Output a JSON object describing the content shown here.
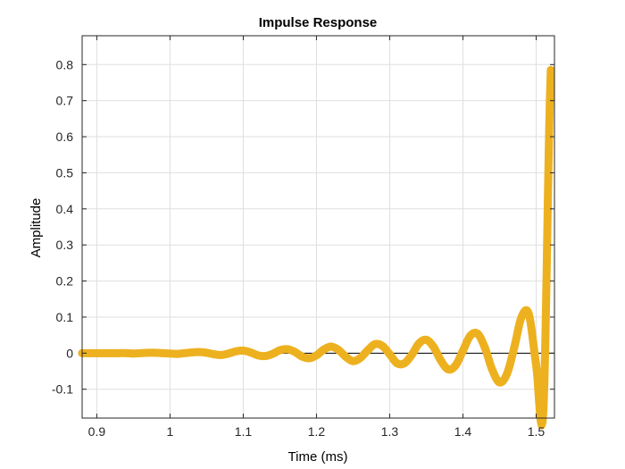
{
  "chart_data": {
    "type": "line",
    "title": "Impulse Response",
    "xlabel": "Time (ms)",
    "ylabel": "Amplitude",
    "xlim": [
      0.88,
      1.525
    ],
    "ylim": [
      -0.18,
      0.88
    ],
    "grid": true,
    "x_ticks": [
      0.9,
      1,
      1.1,
      1.2,
      1.3,
      1.4,
      1.5
    ],
    "x_tick_labels": [
      "0.9",
      "1",
      "1.1",
      "1.2",
      "1.3",
      "1.4",
      "1.5"
    ],
    "y_ticks": [
      -0.1,
      0,
      0.1,
      0.2,
      0.3,
      0.4,
      0.5,
      0.6,
      0.7,
      0.8
    ],
    "y_tick_labels": [
      "-0.1",
      "0",
      "0.1",
      "0.2",
      "0.3",
      "0.4",
      "0.5",
      "0.6",
      "0.7",
      "0.8"
    ],
    "series": [
      {
        "color": "#EDB120",
        "x": [
          0.88,
          0.89,
          0.9,
          0.91,
          0.92,
          0.93,
          0.94,
          0.95,
          0.96,
          0.97,
          0.98,
          0.99,
          1.0,
          1.01,
          1.02,
          1.03,
          1.04,
          1.05,
          1.06,
          1.07,
          1.08,
          1.09,
          1.1,
          1.11,
          1.12,
          1.13,
          1.14,
          1.15,
          1.16,
          1.17,
          1.18,
          1.19,
          1.2,
          1.21,
          1.22,
          1.23,
          1.24,
          1.25,
          1.26,
          1.27,
          1.28,
          1.29,
          1.3,
          1.31,
          1.32,
          1.33,
          1.34,
          1.35,
          1.36,
          1.37,
          1.38,
          1.39,
          1.4,
          1.41,
          1.42,
          1.43,
          1.44,
          1.45,
          1.46,
          1.47,
          1.48,
          1.49,
          1.5,
          1.51,
          1.52
        ],
        "y": [
          0.0,
          0.0,
          0.0,
          0.0,
          0.0,
          0.0,
          0.0,
          -0.001,
          0.0,
          0.001,
          0.001,
          0.0,
          -0.001,
          -0.002,
          0.0,
          0.002,
          0.003,
          0.001,
          -0.003,
          -0.005,
          -0.001,
          0.005,
          0.007,
          0.002,
          -0.006,
          -0.008,
          -0.002,
          0.008,
          0.011,
          0.004,
          -0.009,
          -0.014,
          -0.006,
          0.01,
          0.018,
          0.009,
          -0.01,
          -0.022,
          -0.013,
          0.008,
          0.025,
          0.02,
          -0.003,
          -0.028,
          -0.028,
          -0.005,
          0.027,
          0.037,
          0.017,
          -0.021,
          -0.045,
          -0.034,
          0.007,
          0.048,
          0.054,
          0.015,
          -0.046,
          -0.081,
          -0.058,
          0.015,
          0.1,
          0.108,
          -0.033,
          -0.155,
          0.785
        ]
      }
    ]
  }
}
